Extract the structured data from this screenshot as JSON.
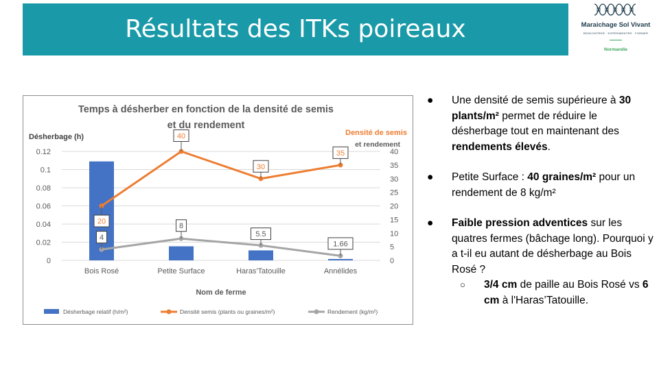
{
  "header": {
    "title": "Résultats des ITKs poireaux"
  },
  "logo": {
    "name": "Maraichage Sol Vivant",
    "tagline": "RENCONTRER · EXPÉRIMENTER · FORMER",
    "region": "Normandie"
  },
  "chart_data": {
    "type": "bar",
    "title_line1": "Temps à désherber en fonction de la densité de semis",
    "title_line2": "et du rendement",
    "ylabel_left": "Désherbage (h)",
    "ylabel_right_line1": "Densité de semis",
    "ylabel_right_line2": "et rendement",
    "xlabel": "Nom de ferme",
    "categories": [
      "Bois Rosé",
      "Petite Surface",
      "Haras'Tatouille",
      "Annélides"
    ],
    "ylim_left": [
      0,
      0.12
    ],
    "ylim_right": [
      0,
      40
    ],
    "left_ticks": [
      "0",
      "0.02",
      "0.04",
      "0.06",
      "0.08",
      "0.1",
      "0.12"
    ],
    "right_ticks": [
      "0",
      "5",
      "10",
      "15",
      "20",
      "25",
      "30",
      "35",
      "40"
    ],
    "grid": true,
    "legend_position": "bottom",
    "series": [
      {
        "name": "Désherbage relatif (h/m²)",
        "kind": "bar",
        "axis": "left",
        "color": "#4472c4",
        "values": [
          0.109,
          0.0155,
          0.011,
          0.0015
        ]
      },
      {
        "name": "Densité semis (plants ou graines/m²)",
        "kind": "line",
        "axis": "right",
        "color": "#ed7d31",
        "values": [
          20,
          40,
          30,
          35
        ],
        "labels": [
          "20",
          "40",
          "30",
          "35"
        ]
      },
      {
        "name": "Rendement (kg/m²)",
        "kind": "line",
        "axis": "right",
        "color": "#a5a5a5",
        "values": [
          4,
          8,
          5.5,
          1.66
        ],
        "labels": [
          "4",
          "8",
          "5.5",
          "1.66"
        ]
      }
    ]
  },
  "bullets": {
    "b1": {
      "t1": "Une densité de semis supérieure à ",
      "b1": "30 plants/m²",
      "t2": " permet de réduire le désherbage tout en maintenant des ",
      "b2": "rendements élevés",
      "t3": "."
    },
    "b2": {
      "t1": "Petite Surface : ",
      "b1": "40 graines/m²",
      "t2": " pour un rendement de 8 kg/m²"
    },
    "b3": {
      "b1": "Faible pression adventices",
      "t1": " sur les quatres fermes (bâchage long). Pourquoi y a t-il eu autant de désherbage au Bois Rosé ?"
    },
    "b3sub": {
      "b1": "3/4 cm",
      "t1": " de paille au Bois Rosé vs ",
      "b2": "6 cm",
      "t2": " à l'Haras’Tatouille."
    },
    "dot": "●",
    "ring": "○"
  }
}
